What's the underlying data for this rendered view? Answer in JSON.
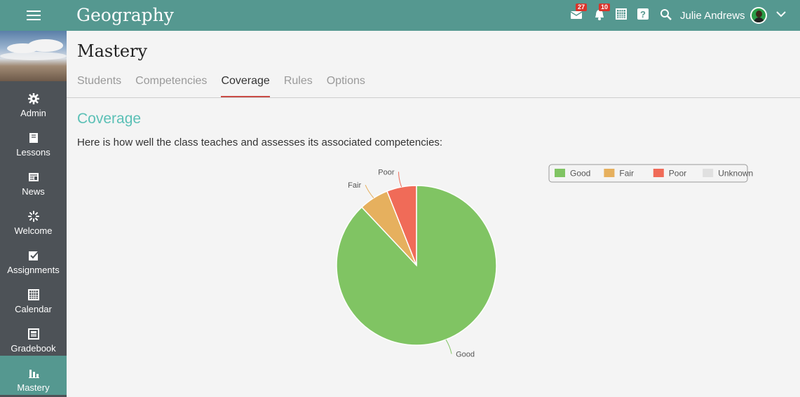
{
  "header": {
    "app_title": "Geography",
    "messages_badge": "27",
    "notifications_badge": "10",
    "user_name": "Julie Andrews"
  },
  "sidebar": {
    "items": [
      {
        "label": "Admin",
        "icon": "gear-icon"
      },
      {
        "label": "Lessons",
        "icon": "book-icon"
      },
      {
        "label": "News",
        "icon": "newspaper-icon"
      },
      {
        "label": "Welcome",
        "icon": "spinner-icon"
      },
      {
        "label": "Assignments",
        "icon": "checkbox-icon"
      },
      {
        "label": "Calendar",
        "icon": "calendar-icon"
      },
      {
        "label": "Gradebook",
        "icon": "gradebook-icon"
      },
      {
        "label": "Mastery",
        "icon": "bar-chart-icon",
        "active": true
      }
    ]
  },
  "page": {
    "title": "Mastery",
    "tabs": [
      {
        "label": "Students"
      },
      {
        "label": "Competencies"
      },
      {
        "label": "Coverage",
        "active": true
      },
      {
        "label": "Rules"
      },
      {
        "label": "Options"
      }
    ],
    "section_title": "Coverage",
    "description": "Here is how well the class teaches and assesses its associated competencies:"
  },
  "colors": {
    "topbar": "#559890",
    "sidebar": "#4d5257",
    "accent": "#5bc0b6",
    "active_tab_underline": "#c94b45"
  },
  "chart_data": {
    "type": "pie",
    "categories": [
      "Good",
      "Fair",
      "Poor",
      "Unknown"
    ],
    "values": [
      88,
      6,
      6,
      0
    ],
    "colors": [
      "#80c463",
      "#e6b05e",
      "#f06b58",
      "#e0e0e0"
    ],
    "legend": "top-right",
    "title": ""
  }
}
